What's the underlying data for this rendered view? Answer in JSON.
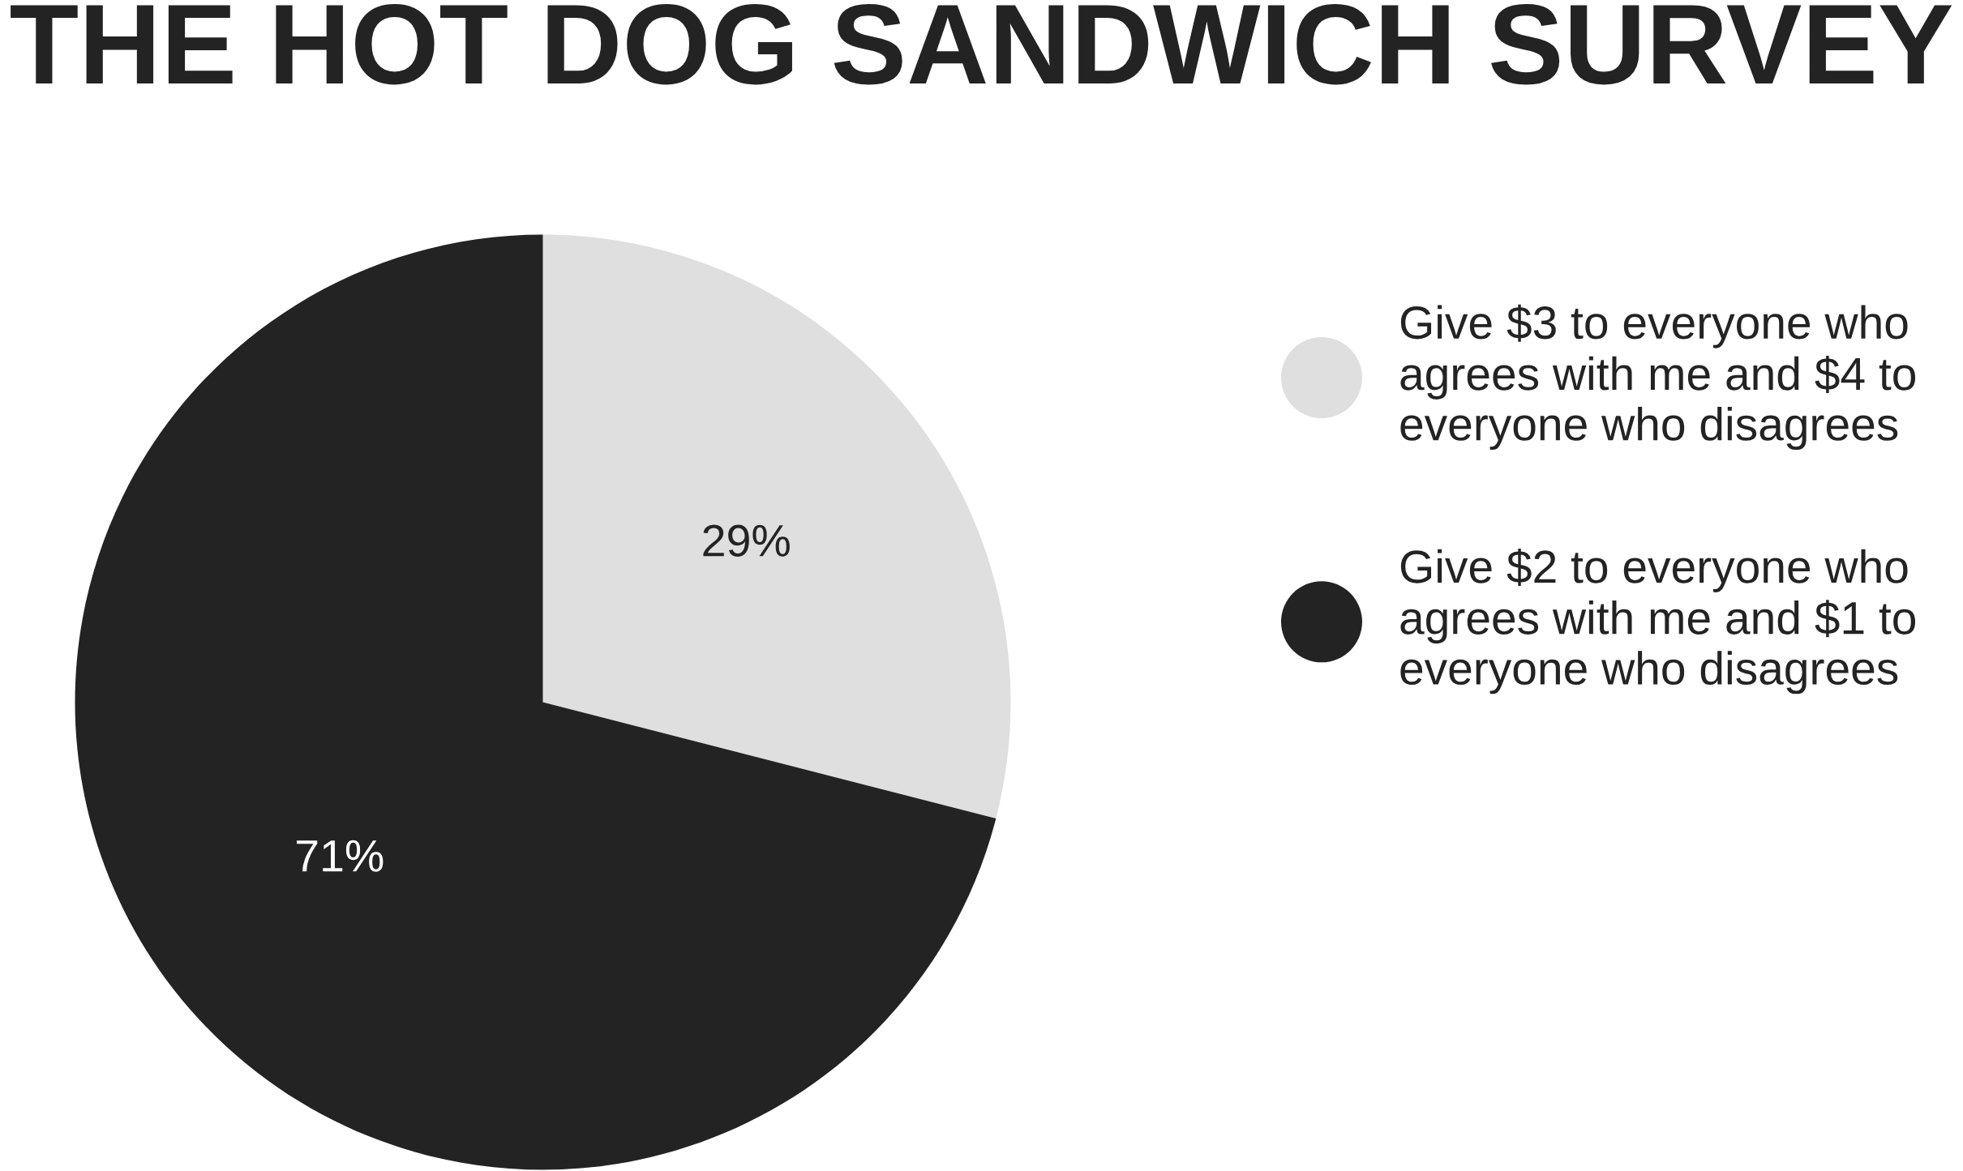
{
  "chart_data": {
    "type": "pie",
    "title": "THE HOT DOG SANDWICH SURVEY",
    "categories": [
      "Give $3 to everyone who agrees with me and $4 to everyone who disagrees",
      "Give $2 to everyone who agrees with me and $1 to everyone who disagrees"
    ],
    "values": [
      29,
      71
    ],
    "colors": [
      "#dfdfdf",
      "#232323"
    ],
    "value_labels": [
      "29%",
      "71%"
    ],
    "legend": "right"
  }
}
